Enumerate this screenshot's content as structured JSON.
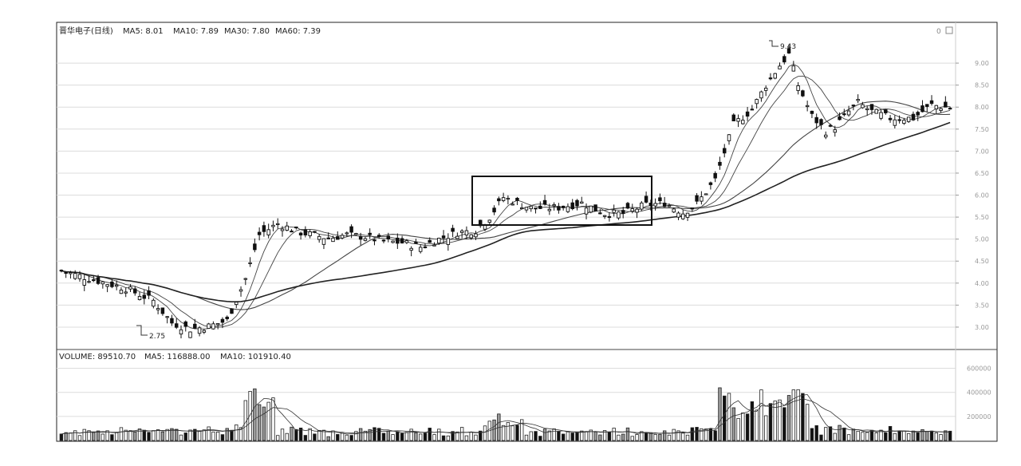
{
  "header": {
    "stock_name": "晋华电子(日线)",
    "ma5": "MA5: 8.01",
    "ma10": "MA10: 7.89",
    "ma30": "MA30: 7.80",
    "ma60": "MA60: 7.39",
    "corner_label": "0"
  },
  "volume_header": {
    "volume": "VOLUME: 89510.70",
    "ma5": "MA5: 116888.00",
    "ma10": "MA10: 101910.40"
  },
  "annotations": {
    "high": "9.43",
    "low": "2.75"
  },
  "colors": {
    "candle_up": "#ffffff",
    "candle_down": "#111111",
    "ma_line": "#444444",
    "grid": "#dcdcdc",
    "box": "#111111"
  },
  "chart_data": {
    "type": "candlestick",
    "price_axis": {
      "ticks": [
        "9.00",
        "8.50",
        "8.00",
        "7.50",
        "7.00",
        "6.50",
        "6.00",
        "5.50",
        "5.00",
        "4.50",
        "4.00",
        "3.50",
        "3.00"
      ],
      "range": [
        2.6,
        9.6
      ]
    },
    "volume_axis": {
      "ticks": [
        "600000",
        "400000",
        "200000"
      ],
      "range": [
        0,
        650000
      ]
    },
    "price_keypoints": [
      [
        0,
        4.28
      ],
      [
        8,
        4.05
      ],
      [
        14,
        3.88
      ],
      [
        20,
        3.6
      ],
      [
        24,
        3.1
      ],
      [
        28,
        2.95
      ],
      [
        32,
        3.02
      ],
      [
        36,
        3.15
      ],
      [
        40,
        4.1
      ],
      [
        43,
        5.1
      ],
      [
        47,
        5.35
      ],
      [
        52,
        5.15
      ],
      [
        58,
        5.02
      ],
      [
        62,
        5.1
      ],
      [
        66,
        5.05
      ],
      [
        70,
        4.95
      ],
      [
        74,
        4.92
      ],
      [
        78,
        4.82
      ],
      [
        82,
        5.0
      ],
      [
        86,
        5.15
      ],
      [
        90,
        5.2
      ],
      [
        93,
        5.5
      ],
      [
        96,
        5.95
      ],
      [
        102,
        5.7
      ],
      [
        108,
        5.72
      ],
      [
        113,
        5.82
      ],
      [
        118,
        5.58
      ],
      [
        122,
        5.58
      ],
      [
        127,
        5.78
      ],
      [
        131,
        5.82
      ],
      [
        135,
        5.6
      ],
      [
        138,
        5.8
      ],
      [
        142,
        6.35
      ],
      [
        146,
        7.6
      ],
      [
        150,
        7.95
      ],
      [
        153,
        8.5
      ],
      [
        156,
        8.95
      ],
      [
        158,
        9.2
      ],
      [
        160,
        8.5
      ],
      [
        163,
        7.8
      ],
      [
        166,
        7.45
      ],
      [
        168,
        7.55
      ],
      [
        171,
        7.9
      ],
      [
        173,
        8.1
      ],
      [
        176,
        7.9
      ],
      [
        180,
        7.75
      ],
      [
        185,
        7.75
      ],
      [
        189,
        8.05
      ],
      [
        193,
        7.98
      ]
    ],
    "series_names": [
      "MA5",
      "MA10",
      "MA30",
      "MA60",
      "VOLUME"
    ],
    "marked_range": {
      "from_bar": 91,
      "to_bar": 136
    }
  }
}
